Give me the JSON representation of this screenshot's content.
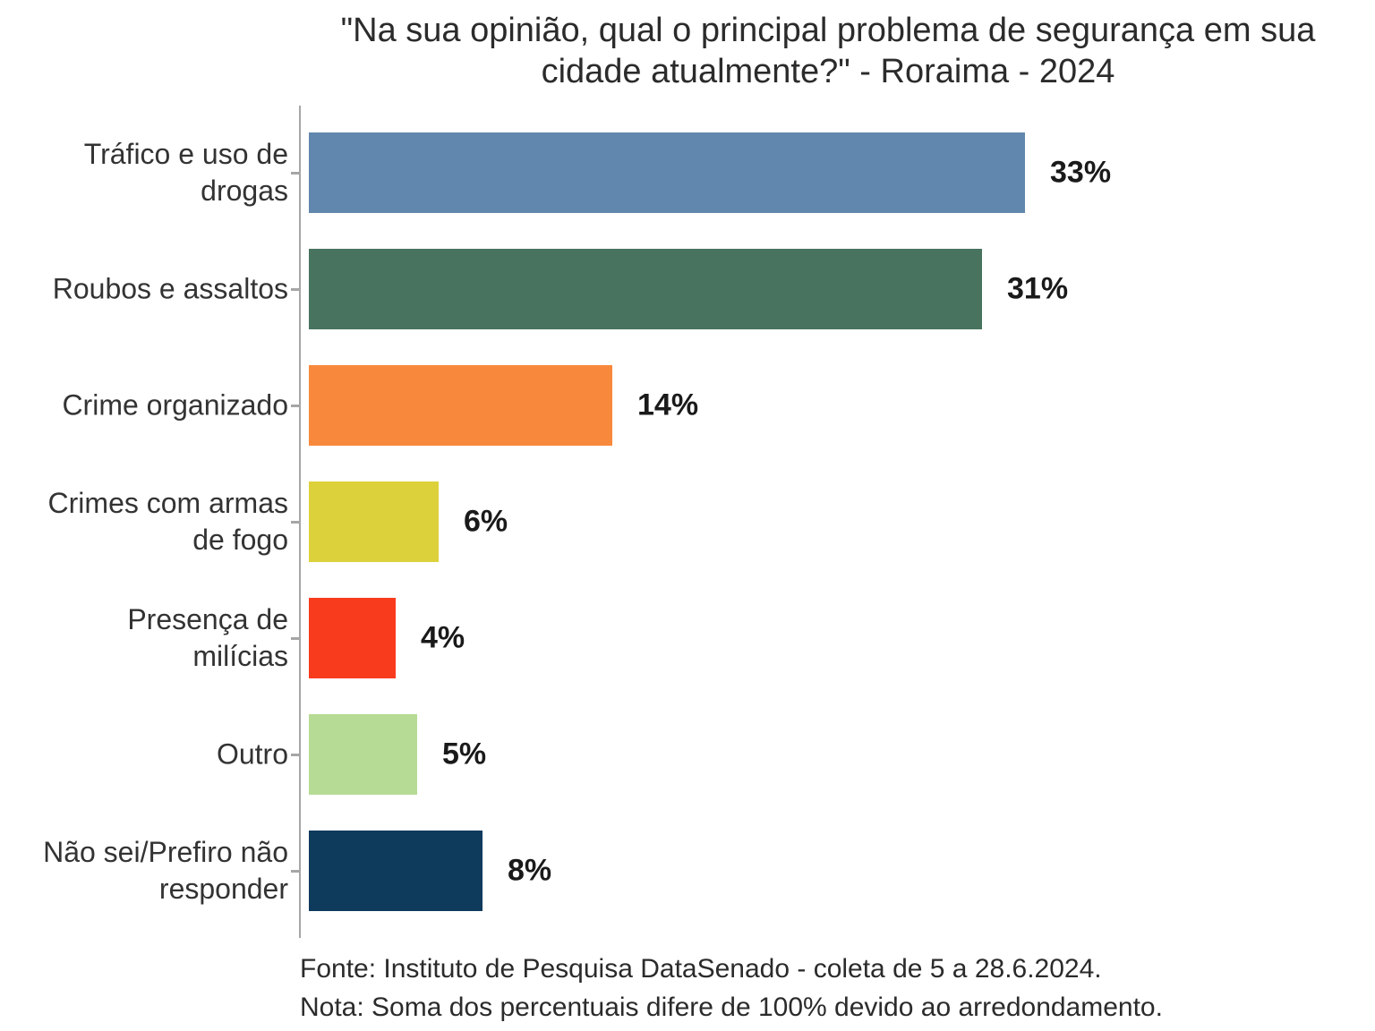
{
  "chart_data": {
    "type": "bar",
    "orientation": "horizontal",
    "title": "\"Na sua opinião, qual o principal problema de segurança em sua cidade atualmente?\" - Roraima - 2024",
    "categories": [
      "Tráfico e uso de drogas",
      "Roubos e assaltos",
      "Crime organizado",
      "Crimes com armas de fogo",
      "Presença de milícias",
      "Outro",
      "Não sei/Prefiro não responder"
    ],
    "values": [
      33,
      31,
      14,
      6,
      4,
      5,
      8
    ],
    "value_labels": [
      "33%",
      "31%",
      "14%",
      "6%",
      "4%",
      "5%",
      "8%"
    ],
    "bar_colors": [
      "#6287ae",
      "#47735f",
      "#f8893c",
      "#ddd13b",
      "#f93b1d",
      "#b6db94",
      "#0e3a5c"
    ],
    "axis_color": "#a6a6a6",
    "xlim": [
      0,
      33
    ],
    "grid": false,
    "x_axis_labels_visible": false,
    "legend": "none",
    "source": "Fonte: Instituto de Pesquisa DataSenado - coleta de 5 a 28.6.2024.",
    "note": "Nota: Soma dos percentuais difere de 100% devido ao arredondamento."
  }
}
